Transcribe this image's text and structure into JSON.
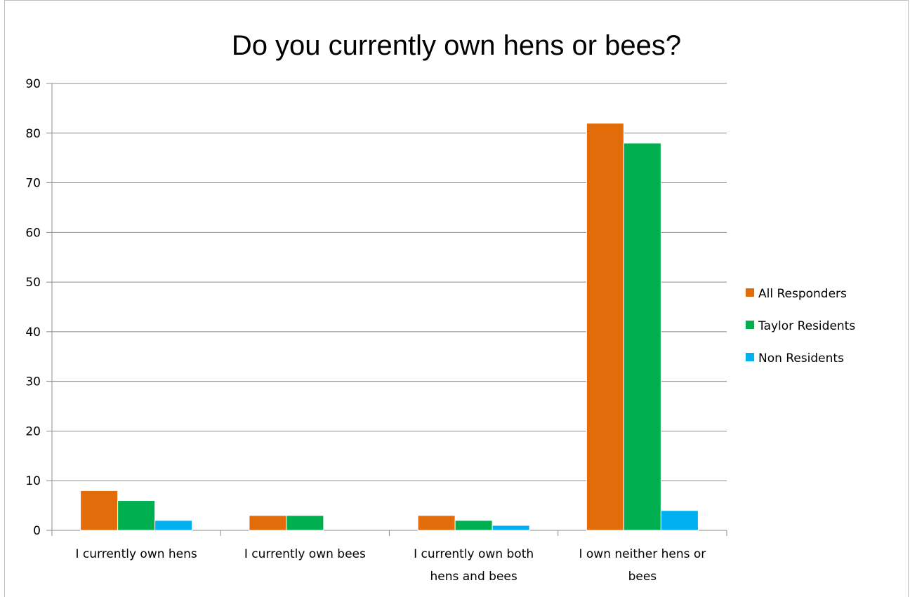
{
  "chart_data": {
    "type": "bar",
    "title": "Do you currently own hens or bees?",
    "xlabel": "",
    "ylabel": "",
    "ylim": [
      0,
      90
    ],
    "yticks": [
      0,
      10,
      20,
      30,
      40,
      50,
      60,
      70,
      80,
      90
    ],
    "grid": true,
    "legend_position": "right",
    "categories": [
      [
        "I currently own hens"
      ],
      [
        "I currently own bees"
      ],
      [
        "I currently own both",
        "hens and bees"
      ],
      [
        "I own neither hens or",
        "bees"
      ]
    ],
    "series": [
      {
        "name": "All Responders",
        "color": "#E36C0A",
        "values": [
          8,
          3,
          3,
          82
        ]
      },
      {
        "name": "Taylor Residents",
        "color": "#00B050",
        "values": [
          6,
          3,
          2,
          78
        ]
      },
      {
        "name": "Non Residents",
        "color": "#00B0F0",
        "values": [
          2,
          0,
          1,
          4
        ]
      }
    ]
  }
}
